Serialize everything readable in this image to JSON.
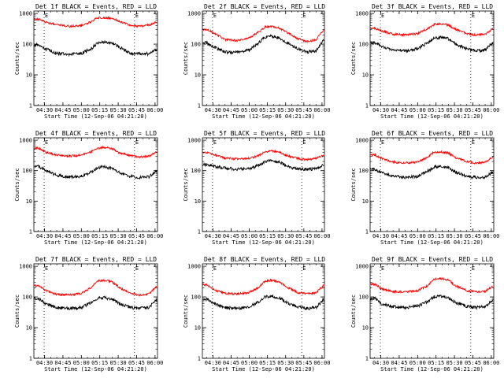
{
  "chart_data": [
    {
      "type": "line",
      "title": "Det 1f BLACK = Events, RED = LLD",
      "xlabel": "Start Time (12-Sep-06 04:21:20)",
      "ylabel": "Counts/sec",
      "x_ticks": [
        "04:30",
        "04:45",
        "05:00",
        "05:15",
        "05:30",
        "05:45",
        "06:00"
      ],
      "y_ticks": [
        "1",
        "10",
        "100",
        "1000"
      ],
      "y_scale": "log",
      "ylim": [
        1,
        1200
      ],
      "markers": [
        "E",
        "E"
      ],
      "series": [
        {
          "name": "Events",
          "color": "#000000",
          "x": [
            "04:25",
            "04:31",
            "04:40",
            "04:50",
            "05:00",
            "05:08",
            "05:13",
            "05:18",
            "05:25",
            "05:31",
            "05:40",
            "05:47",
            "05:55",
            "06:01"
          ],
          "values": [
            95,
            70,
            50,
            47,
            50,
            70,
            110,
            120,
            110,
            80,
            50,
            48,
            48,
            65
          ]
        },
        {
          "name": "LLD",
          "color": "#ff0000",
          "x": [
            "04:25",
            "04:31",
            "04:40",
            "04:50",
            "05:00",
            "05:08",
            "05:13",
            "05:18",
            "05:25",
            "05:31",
            "05:40",
            "05:47",
            "05:55",
            "06:01"
          ],
          "values": [
            650,
            520,
            430,
            380,
            400,
            550,
            720,
            740,
            700,
            560,
            420,
            380,
            420,
            520
          ]
        }
      ]
    },
    {
      "type": "line",
      "title": "Det 2f BLACK = Events, RED = LLD",
      "xlabel": "Start Time (12-Sep-06 04:21:20)",
      "ylabel": "Counts/sec",
      "x_ticks": [
        "04:30",
        "04:45",
        "05:00",
        "05:15",
        "05:30",
        "05:45",
        "06:00"
      ],
      "y_ticks": [
        "1",
        "10",
        "100",
        "1000"
      ],
      "y_scale": "log",
      "ylim": [
        1,
        1200
      ],
      "markers": [
        "E",
        "E"
      ],
      "series": [
        {
          "name": "Events",
          "color": "#000000",
          "x": [
            "04:25",
            "04:31",
            "04:40",
            "04:50",
            "05:00",
            "05:08",
            "05:13",
            "05:18",
            "05:25",
            "05:31",
            "05:40",
            "05:47",
            "05:55",
            "06:01"
          ],
          "values": [
            110,
            80,
            55,
            55,
            65,
            110,
            170,
            180,
            160,
            110,
            70,
            55,
            60,
            130
          ]
        },
        {
          "name": "LLD",
          "color": "#ff0000",
          "x": [
            "04:25",
            "04:31",
            "04:40",
            "04:50",
            "05:00",
            "05:08",
            "05:13",
            "05:18",
            "05:25",
            "05:31",
            "05:40",
            "05:47",
            "05:55",
            "06:01"
          ],
          "values": [
            300,
            230,
            140,
            130,
            160,
            250,
            360,
            380,
            330,
            240,
            150,
            120,
            140,
            280
          ]
        }
      ]
    },
    {
      "type": "line",
      "title": "Det 3f BLACK = Events, RED = LLD",
      "xlabel": "Start Time (12-Sep-06 04:21:20)",
      "ylabel": "Counts/sec",
      "x_ticks": [
        "04:30",
        "04:45",
        "05:00",
        "05:15",
        "05:30",
        "05:45",
        "06:00"
      ],
      "y_ticks": [
        "1",
        "10",
        "100",
        "1000"
      ],
      "y_scale": "log",
      "ylim": [
        1,
        1200
      ],
      "markers": [
        "E",
        "E"
      ],
      "series": [
        {
          "name": "Events",
          "color": "#000000",
          "x": [
            "04:25",
            "04:31",
            "04:40",
            "04:50",
            "05:00",
            "05:08",
            "05:13",
            "05:18",
            "05:25",
            "05:31",
            "05:40",
            "05:47",
            "05:55",
            "06:01"
          ],
          "values": [
            110,
            85,
            65,
            60,
            70,
            110,
            155,
            165,
            150,
            100,
            70,
            60,
            65,
            110
          ]
        },
        {
          "name": "LLD",
          "color": "#ff0000",
          "x": [
            "04:25",
            "04:31",
            "04:40",
            "04:50",
            "05:00",
            "05:08",
            "05:13",
            "05:18",
            "05:25",
            "05:31",
            "05:40",
            "05:47",
            "05:55",
            "06:01"
          ],
          "values": [
            330,
            270,
            210,
            200,
            220,
            320,
            430,
            460,
            420,
            300,
            220,
            200,
            210,
            320
          ]
        }
      ]
    },
    {
      "type": "line",
      "title": "Det 4f BLACK = Events, RED = LLD",
      "xlabel": "Start Time (12-Sep-06 04:21:20)",
      "ylabel": "Counts/sec",
      "x_ticks": [
        "04:30",
        "04:45",
        "05:00",
        "05:15",
        "05:30",
        "05:45",
        "06:00"
      ],
      "y_ticks": [
        "1",
        "10",
        "100",
        "1000"
      ],
      "y_scale": "log",
      "ylim": [
        1,
        1200
      ],
      "markers": [
        "E",
        "E"
      ],
      "series": [
        {
          "name": "Events",
          "color": "#000000",
          "x": [
            "04:25",
            "04:31",
            "04:40",
            "04:50",
            "05:00",
            "05:08",
            "05:13",
            "05:18",
            "05:25",
            "05:31",
            "05:40",
            "05:47",
            "05:55",
            "06:01"
          ],
          "values": [
            140,
            100,
            70,
            62,
            65,
            90,
            125,
            135,
            120,
            85,
            65,
            60,
            62,
            95
          ]
        },
        {
          "name": "LLD",
          "color": "#ff0000",
          "x": [
            "04:25",
            "04:31",
            "04:40",
            "04:50",
            "05:00",
            "05:08",
            "05:13",
            "05:18",
            "05:25",
            "05:31",
            "05:40",
            "05:47",
            "05:55",
            "06:01"
          ],
          "values": [
            550,
            400,
            330,
            300,
            320,
            420,
            550,
            580,
            530,
            380,
            310,
            280,
            300,
            400
          ]
        }
      ]
    },
    {
      "type": "line",
      "title": "Det 5f BLACK = Events, RED = LLD",
      "xlabel": "Start Time (12-Sep-06 04:21:20)",
      "ylabel": "Counts/sec",
      "x_ticks": [
        "04:30",
        "04:45",
        "05:00",
        "05:15",
        "05:30",
        "05:45",
        "06:00"
      ],
      "y_ticks": [
        "1",
        "10",
        "100",
        "1000"
      ],
      "y_scale": "log",
      "ylim": [
        1,
        1200
      ],
      "markers": [
        "E",
        "E"
      ],
      "series": [
        {
          "name": "Events",
          "color": "#000000",
          "x": [
            "04:25",
            "04:31",
            "04:40",
            "04:50",
            "05:00",
            "05:08",
            "05:13",
            "05:18",
            "05:25",
            "05:31",
            "05:40",
            "05:47",
            "05:55",
            "06:01"
          ],
          "values": [
            160,
            140,
            120,
            112,
            115,
            150,
            200,
            210,
            190,
            140,
            115,
            110,
            115,
            150
          ]
        },
        {
          "name": "LLD",
          "color": "#ff0000",
          "x": [
            "04:25",
            "04:31",
            "04:40",
            "04:50",
            "05:00",
            "05:08",
            "05:13",
            "05:18",
            "05:25",
            "05:31",
            "05:40",
            "05:47",
            "05:55",
            "06:01"
          ],
          "values": [
            400,
            330,
            260,
            240,
            250,
            320,
            420,
            440,
            410,
            310,
            250,
            230,
            250,
            320
          ]
        }
      ]
    },
    {
      "type": "line",
      "title": "Det 6f BLACK = Events, RED = LLD",
      "xlabel": "Start Time (12-Sep-06 04:21:20)",
      "ylabel": "Counts/sec",
      "x_ticks": [
        "04:30",
        "04:45",
        "05:00",
        "05:15",
        "05:30",
        "05:45",
        "06:00"
      ],
      "y_ticks": [
        "1",
        "10",
        "100",
        "1000"
      ],
      "y_scale": "log",
      "ylim": [
        1,
        1200
      ],
      "markers": [
        "E",
        "E"
      ],
      "series": [
        {
          "name": "Events",
          "color": "#000000",
          "x": [
            "04:25",
            "04:31",
            "04:40",
            "04:50",
            "05:00",
            "05:08",
            "05:13",
            "05:18",
            "05:25",
            "05:31",
            "05:40",
            "05:47",
            "05:55",
            "06:01"
          ],
          "values": [
            110,
            85,
            65,
            60,
            65,
            95,
            130,
            140,
            125,
            90,
            65,
            60,
            62,
            90
          ]
        },
        {
          "name": "LLD",
          "color": "#ff0000",
          "x": [
            "04:25",
            "04:31",
            "04:40",
            "04:50",
            "05:00",
            "05:08",
            "05:13",
            "05:18",
            "05:25",
            "05:31",
            "05:40",
            "05:47",
            "05:55",
            "06:01"
          ],
          "values": [
            330,
            250,
            190,
            180,
            190,
            270,
            400,
            420,
            380,
            270,
            200,
            180,
            190,
            280
          ]
        }
      ]
    },
    {
      "type": "line",
      "title": "Det 7f BLACK = Events, RED = LLD",
      "xlabel": "Start Time (12-Sep-06 04:21:20)",
      "ylabel": "Counts/sec",
      "x_ticks": [
        "04:30",
        "04:45",
        "05:00",
        "05:15",
        "05:30",
        "05:45",
        "06:00"
      ],
      "y_ticks": [
        "1",
        "10",
        "100",
        "1000"
      ],
      "y_scale": "log",
      "ylim": [
        1,
        1200
      ],
      "markers": [
        "E",
        "E"
      ],
      "series": [
        {
          "name": "Events",
          "color": "#000000",
          "x": [
            "04:25",
            "04:31",
            "04:40",
            "04:50",
            "05:00",
            "05:08",
            "05:13",
            "05:18",
            "05:25",
            "05:31",
            "05:40",
            "05:47",
            "05:55",
            "06:01"
          ],
          "values": [
            90,
            60,
            45,
            42,
            45,
            65,
            90,
            95,
            85,
            60,
            45,
            42,
            45,
            80
          ]
        },
        {
          "name": "LLD",
          "color": "#ff0000",
          "x": [
            "04:25",
            "04:31",
            "04:40",
            "04:50",
            "05:00",
            "05:08",
            "05:13",
            "05:18",
            "05:25",
            "05:31",
            "05:40",
            "05:47",
            "05:55",
            "06:01"
          ],
          "values": [
            230,
            160,
            120,
            115,
            130,
            200,
            330,
            350,
            310,
            200,
            130,
            115,
            125,
            220
          ]
        }
      ]
    },
    {
      "type": "line",
      "title": "Det 8f BLACK = Events, RED = LLD",
      "xlabel": "Start Time (12-Sep-06 04:21:20)",
      "ylabel": "Counts/sec",
      "x_ticks": [
        "04:30",
        "04:45",
        "05:00",
        "05:15",
        "05:30",
        "05:45",
        "06:00"
      ],
      "y_ticks": [
        "1",
        "10",
        "100",
        "1000"
      ],
      "y_scale": "log",
      "ylim": [
        1,
        1200
      ],
      "markers": [
        "E",
        "E"
      ],
      "series": [
        {
          "name": "Events",
          "color": "#000000",
          "x": [
            "04:25",
            "04:31",
            "04:40",
            "04:50",
            "05:00",
            "05:08",
            "05:13",
            "05:18",
            "05:25",
            "05:31",
            "05:40",
            "05:47",
            "05:55",
            "06:01"
          ],
          "values": [
            85,
            60,
            45,
            42,
            48,
            70,
            100,
            105,
            95,
            65,
            48,
            42,
            45,
            80
          ]
        },
        {
          "name": "LLD",
          "color": "#ff0000",
          "x": [
            "04:25",
            "04:31",
            "04:40",
            "04:50",
            "05:00",
            "05:08",
            "05:13",
            "05:18",
            "05:25",
            "05:31",
            "05:40",
            "05:47",
            "05:55",
            "06:01"
          ],
          "values": [
            250,
            170,
            130,
            125,
            140,
            210,
            330,
            350,
            310,
            210,
            140,
            125,
            135,
            230
          ]
        }
      ]
    },
    {
      "type": "line",
      "title": "Det 9f BLACK = Events, RED = LLD",
      "xlabel": "Start Time (12-Sep-06 04:21:20)",
      "ylabel": "Counts/sec",
      "x_ticks": [
        "04:30",
        "04:45",
        "05:00",
        "05:15",
        "05:30",
        "05:45",
        "06:00"
      ],
      "y_ticks": [
        "1",
        "10",
        "100",
        "1000"
      ],
      "y_scale": "log",
      "ylim": [
        1,
        1200
      ],
      "markers": [
        "E",
        "E"
      ],
      "series": [
        {
          "name": "Events",
          "color": "#000000",
          "x": [
            "04:25",
            "04:31",
            "04:40",
            "04:50",
            "05:00",
            "05:08",
            "05:13",
            "05:18",
            "05:25",
            "05:31",
            "05:40",
            "05:47",
            "05:55",
            "06:01"
          ],
          "values": [
            90,
            60,
            48,
            45,
            50,
            70,
            100,
            105,
            95,
            65,
            50,
            45,
            48,
            75
          ]
        },
        {
          "name": "LLD",
          "color": "#ff0000",
          "x": [
            "04:25",
            "04:31",
            "04:40",
            "04:50",
            "05:00",
            "05:08",
            "05:13",
            "05:18",
            "05:25",
            "05:31",
            "05:40",
            "05:47",
            "05:55",
            "06:01"
          ],
          "values": [
            260,
            180,
            150,
            145,
            160,
            230,
            380,
            400,
            360,
            230,
            160,
            145,
            150,
            220
          ]
        }
      ]
    }
  ]
}
